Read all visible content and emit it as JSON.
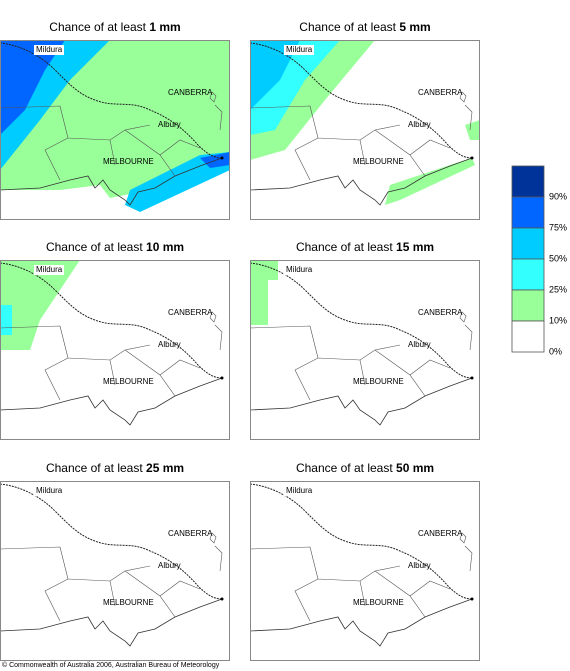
{
  "panels": [
    {
      "title": "Chance of at least",
      "amount": "1 mm"
    },
    {
      "title": "Chance of at least",
      "amount": "5 mm"
    },
    {
      "title": "Chance of at least",
      "amount": "10 mm"
    },
    {
      "title": "Chance of at least",
      "amount": "15 mm"
    },
    {
      "title": "Chance of at least",
      "amount": "25 mm"
    },
    {
      "title": "Chance of at least",
      "amount": "50 mm"
    }
  ],
  "places": [
    "Mildura",
    "CANBERRA",
    "Albury",
    "MELBOURNE"
  ],
  "legend": [
    {
      "label": "90%",
      "color": "#003399"
    },
    {
      "label": "75%",
      "color": "#0066ff"
    },
    {
      "label": "50%",
      "color": "#00ccff"
    },
    {
      "label": "25%",
      "color": "#33ffff"
    },
    {
      "label": "10%",
      "color": "#99ff99"
    },
    {
      "label": "0%",
      "color": "#ffffff"
    }
  ],
  "copyright": "© Commonwealth of Australia 2006, Australian Bureau of Meteorology"
}
